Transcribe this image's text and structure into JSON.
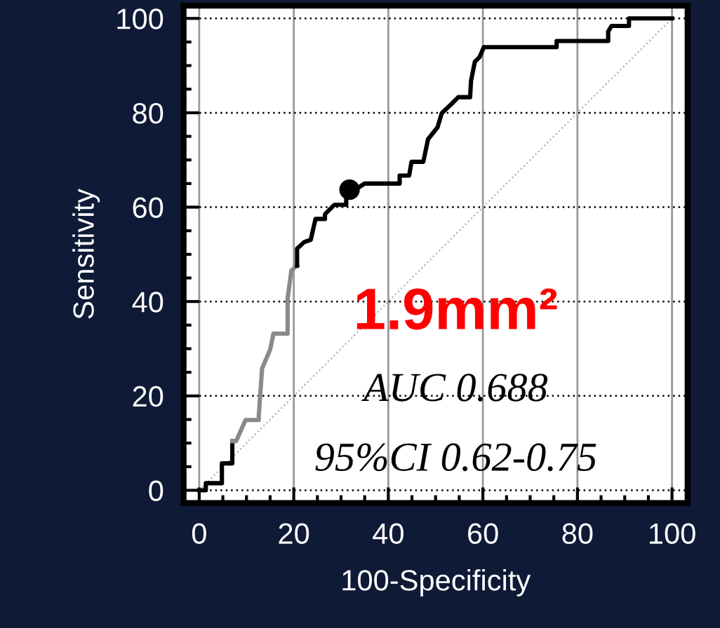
{
  "chart_data": {
    "type": "line",
    "xlabel": "100-Specificity",
    "ylabel": "Sensitivity",
    "xlim": [
      -3.3,
      103.3
    ],
    "ylim": [
      -2.7,
      102.7
    ],
    "xticks": [
      0,
      20,
      40,
      60,
      80,
      100
    ],
    "yticks": [
      0,
      20,
      40,
      60,
      80,
      100
    ],
    "grid": true,
    "marker": "none",
    "series": [
      {
        "color": "#b0b0b0",
        "x": [
          0,
          100
        ],
        "values": [
          0,
          100
        ],
        "line_style": "dotted"
      },
      {
        "color": "#000000",
        "x": [
          0,
          1.4,
          1.4,
          4.8,
          4.8,
          7.0,
          7.0
        ],
        "values": [
          0,
          0,
          1.5,
          1.5,
          5.7,
          5.7,
          10.4
        ]
      },
      {
        "color": "#8a8a8a",
        "x": [
          7.0,
          7.8,
          9.8,
          12.6,
          12.6,
          13.3,
          15.0,
          15.7,
          18.7,
          18.7,
          19.5,
          20.7
        ],
        "values": [
          10.4,
          10.4,
          14.9,
          14.9,
          15.9,
          25.8,
          29.8,
          33.2,
          33.2,
          40.7,
          46.6,
          47.6
        ]
      },
      {
        "color": "#000000",
        "x": [
          20.7,
          20.7,
          22.2,
          23.6,
          24.6,
          26.6,
          26.6,
          28.6,
          31.1,
          31.1,
          35.0,
          42.4,
          42.4,
          44.4,
          44.9,
          47.4,
          48.4,
          50.4,
          51.3,
          53.3,
          54.8,
          57.3,
          57.5,
          58.3,
          59.3,
          60.2,
          75.6,
          75.6,
          86.5,
          86.5,
          87.2,
          90.9,
          90.9,
          100
        ],
        "values": [
          47.6,
          51.2,
          52.6,
          53.1,
          57.5,
          57.5,
          58.5,
          60.5,
          60.5,
          62.5,
          65.0,
          65.0,
          66.7,
          66.7,
          69.6,
          69.6,
          74.4,
          76.9,
          79.9,
          81.8,
          83.3,
          83.3,
          86.8,
          90.8,
          91.8,
          93.9,
          93.9,
          95.2,
          95.2,
          97.2,
          98.4,
          98.4,
          100,
          100
        ]
      },
      {
        "type": "scatter",
        "color": "#000000",
        "marker": "circle",
        "x": [
          31.8
        ],
        "values": [
          63.7
        ]
      }
    ],
    "annotations": [
      "1.9mm²",
      "AUC 0.688",
      "95%CI 0.62-0.75"
    ]
  }
}
